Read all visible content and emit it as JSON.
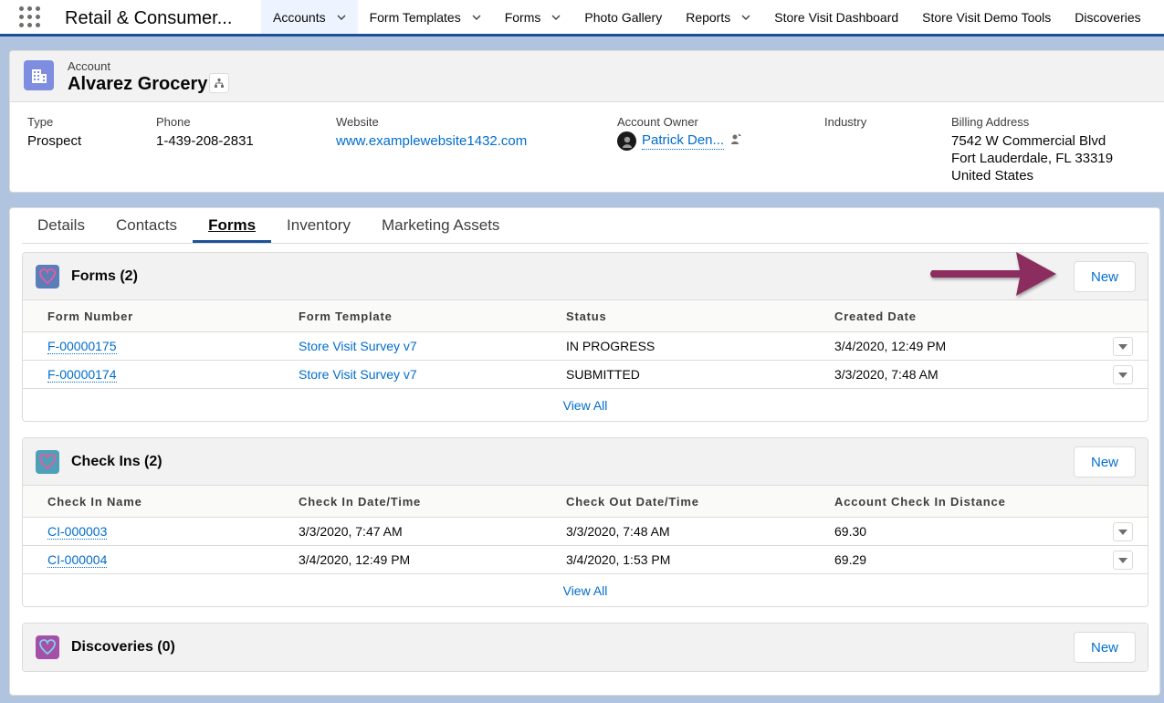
{
  "nav": {
    "app_name": "Retail & Consumer...",
    "items": [
      {
        "label": "Accounts",
        "active": true,
        "has_menu": true
      },
      {
        "label": "Form Templates",
        "has_menu": true
      },
      {
        "label": "Forms",
        "has_menu": true
      },
      {
        "label": "Photo Gallery",
        "has_menu": false
      },
      {
        "label": "Reports",
        "has_menu": true
      },
      {
        "label": "Store Visit Dashboard",
        "has_menu": false
      },
      {
        "label": "Store Visit Demo Tools",
        "has_menu": false
      },
      {
        "label": "Discoveries",
        "has_menu": false
      }
    ]
  },
  "record": {
    "object_label": "Account",
    "name": "Alvarez Grocery",
    "fields": {
      "type": {
        "label": "Type",
        "value": "Prospect"
      },
      "phone": {
        "label": "Phone",
        "value": "1-439-208-2831"
      },
      "website": {
        "label": "Website",
        "value": "www.examplewebsite1432.com"
      },
      "owner": {
        "label": "Account Owner",
        "value": "Patrick Den..."
      },
      "industry": {
        "label": "Industry",
        "value": ""
      },
      "billing": {
        "label": "Billing Address",
        "line1": "7542 W Commercial Blvd",
        "line2": "Fort Lauderdale, FL 33319",
        "line3": "United States"
      }
    }
  },
  "tabs": [
    "Details",
    "Contacts",
    "Forms",
    "Inventory",
    "Marketing Assets"
  ],
  "active_tab": "Forms",
  "forms_list": {
    "title": "Forms (2)",
    "new_label": "New",
    "columns": [
      "Form Number",
      "Form Template",
      "Status",
      "Created Date"
    ],
    "rows": [
      [
        "F-00000175",
        "Store Visit Survey v7",
        "IN PROGRESS",
        "3/4/2020, 12:49 PM"
      ],
      [
        "F-00000174",
        "Store Visit Survey v7",
        "SUBMITTED",
        "3/3/2020, 7:48 AM"
      ]
    ],
    "view_all": "View All"
  },
  "checkins_list": {
    "title": "Check Ins (2)",
    "new_label": "New",
    "columns": [
      "Check In Name",
      "Check In Date/Time",
      "Check Out Date/Time",
      "Account Check In Distance"
    ],
    "rows": [
      [
        "CI-000003",
        "3/3/2020, 7:47 AM",
        "3/3/2020, 7:48 AM",
        "69.30"
      ],
      [
        "CI-000004",
        "3/4/2020, 12:49 PM",
        "3/4/2020, 1:53 PM",
        "69.29"
      ]
    ],
    "view_all": "View All"
  },
  "discoveries_list": {
    "title": "Discoveries (0)",
    "new_label": "New"
  },
  "colors": {
    "brand": "#1b5297",
    "link": "#006dcc",
    "annotation_arrow": "#8b2e5f"
  }
}
